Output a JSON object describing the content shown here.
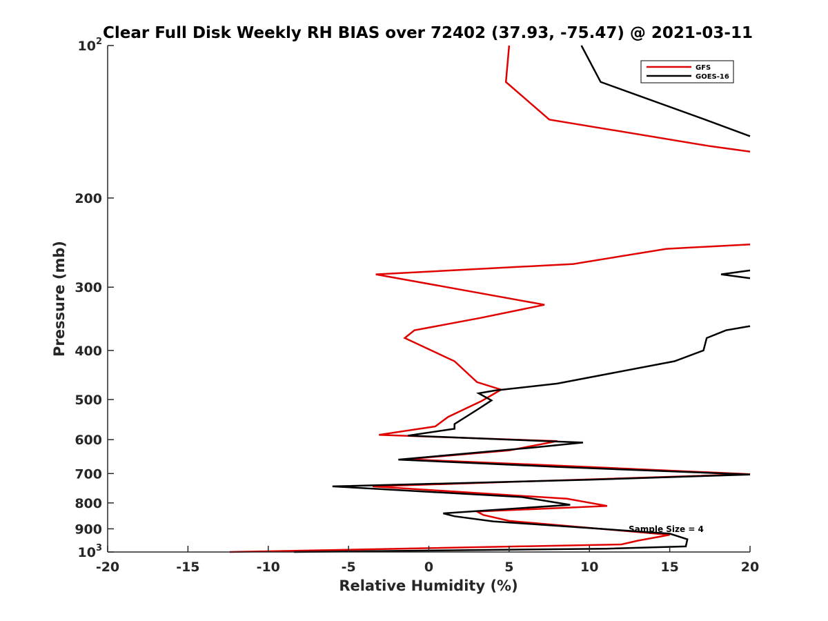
{
  "chart_data": {
    "type": "line",
    "title": "Clear Full Disk Weekly RH BIAS over 72402 (37.93, -75.47) @ 2021-03-11",
    "xlabel": "Relative Humidity (%)",
    "ylabel": "Pressure (mb)",
    "xlim": [
      -20,
      20
    ],
    "ylim": [
      100,
      1000
    ],
    "yscale": "log",
    "y_reversed": true,
    "xticks": [
      -20,
      -15,
      -10,
      -5,
      0,
      5,
      10,
      15,
      20
    ],
    "xtick_labels": [
      "-20",
      "-15",
      "-10",
      "-5",
      "0",
      "5",
      "10",
      "15",
      "20"
    ],
    "yticks": [
      100,
      200,
      300,
      400,
      500,
      600,
      700,
      800,
      900,
      1000
    ],
    "ytick_labels": [
      {
        "base": "10",
        "sup": "2"
      },
      {
        "base": "200",
        "sup": ""
      },
      {
        "base": "300",
        "sup": ""
      },
      {
        "base": "400",
        "sup": ""
      },
      {
        "base": "500",
        "sup": ""
      },
      {
        "base": "600",
        "sup": ""
      },
      {
        "base": "700",
        "sup": ""
      },
      {
        "base": "800",
        "sup": ""
      },
      {
        "base": "900",
        "sup": ""
      },
      {
        "base": "10",
        "sup": "3"
      }
    ],
    "legend": {
      "position": "top-right",
      "entries": [
        {
          "name": "GFS",
          "color": "#e00000"
        },
        {
          "name": "GOES-16",
          "color": "#000000"
        }
      ]
    },
    "annotation": "Sample Size = 4",
    "series": [
      {
        "name": "GFS",
        "color": "#e00000",
        "points": [
          [
            5.0,
            100
          ],
          [
            4.8,
            118
          ],
          [
            7.5,
            140
          ],
          [
            17.5,
            158
          ],
          [
            20.0,
            162
          ],
          [
            null,
            null
          ],
          [
            20.0,
            247
          ],
          [
            14.8,
            252
          ],
          [
            9.0,
            270
          ],
          [
            -3.3,
            283
          ],
          [
            7.2,
            325
          ],
          [
            3.2,
            345
          ],
          [
            -0.9,
            365
          ],
          [
            -1.5,
            378
          ],
          [
            1.6,
            420
          ],
          [
            3.0,
            462
          ],
          [
            4.5,
            478
          ],
          [
            3.3,
            503
          ],
          [
            1.2,
            541
          ],
          [
            0.4,
            565
          ],
          [
            -3.1,
            587
          ],
          [
            8.0,
            604
          ],
          [
            5.0,
            630
          ],
          [
            -1.4,
            656
          ],
          [
            8.0,
            675
          ],
          [
            20.0,
            702
          ],
          [
            -3.5,
            742
          ],
          [
            8.6,
            785
          ],
          [
            11.1,
            811
          ],
          [
            3.0,
            832
          ],
          [
            3.4,
            845
          ],
          [
            5.0,
            868
          ],
          [
            15.0,
            925
          ],
          [
            13.0,
            950
          ],
          [
            12.0,
            966
          ],
          [
            -12.4,
            1000
          ]
        ]
      },
      {
        "name": "GOES-16",
        "color": "#000000",
        "points": [
          [
            9.5,
            100
          ],
          [
            10.7,
            118
          ],
          [
            17.2,
            140
          ],
          [
            20.0,
            151
          ],
          [
            null,
            null
          ],
          [
            20.0,
            278
          ],
          [
            18.2,
            283
          ],
          [
            20.0,
            288
          ],
          [
            null,
            null
          ],
          [
            20.0,
            358
          ],
          [
            18.5,
            365
          ],
          [
            17.3,
            378
          ],
          [
            17.1,
            400
          ],
          [
            15.3,
            420
          ],
          [
            8.0,
            465
          ],
          [
            4.1,
            480
          ],
          [
            3.1,
            486
          ],
          [
            3.9,
            502
          ],
          [
            3.0,
            524
          ],
          [
            1.6,
            559
          ],
          [
            1.6,
            571
          ],
          [
            -1.3,
            589
          ],
          [
            9.6,
            608
          ],
          [
            6.5,
            622
          ],
          [
            -1.9,
            657
          ],
          [
            8.0,
            679
          ],
          [
            20.0,
            703
          ],
          [
            10.0,
            720
          ],
          [
            -6.0,
            742
          ],
          [
            5.8,
            779
          ],
          [
            8.8,
            807
          ],
          [
            0.9,
            839
          ],
          [
            1.6,
            850
          ],
          [
            4.0,
            870
          ],
          [
            15.0,
            920
          ],
          [
            16.1,
            944
          ],
          [
            16.0,
            975
          ],
          [
            11.0,
            985
          ],
          [
            -8.4,
            1000
          ]
        ]
      }
    ]
  }
}
